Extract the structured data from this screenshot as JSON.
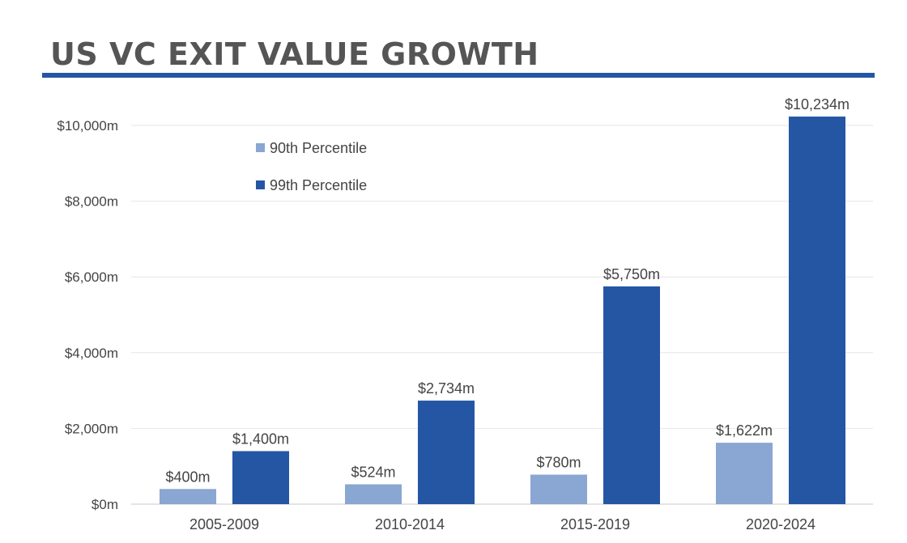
{
  "title": "US VC EXIT VALUE GROWTH",
  "chart_data": {
    "type": "bar",
    "title": "US VC EXIT VALUE GROWTH",
    "categories": [
      "2005-2009",
      "2010-2014",
      "2015-2019",
      "2020-2024"
    ],
    "series": [
      {
        "name": "90th Percentile",
        "color": "#8aa6d2",
        "values": [
          400,
          524,
          780,
          1622
        ],
        "labels": [
          "$400m",
          "$524m",
          "$780m",
          "$1,622m"
        ]
      },
      {
        "name": "99th Percentile",
        "color": "#2456a4",
        "values": [
          1400,
          2734,
          5750,
          10234
        ],
        "labels": [
          "$1,400m",
          "$2,734m",
          "$5,750m",
          "$10,234m"
        ]
      }
    ],
    "y_ticks": [
      0,
      2000,
      4000,
      6000,
      8000,
      10000
    ],
    "y_tick_labels": [
      "$0m",
      "$2,000m",
      "$4,000m",
      "$6,000m",
      "$8,000m",
      "$10,000m"
    ],
    "ylim": [
      0,
      10000
    ],
    "xlabel": "",
    "ylabel": "",
    "grid": true,
    "legend_position": "top-left"
  }
}
